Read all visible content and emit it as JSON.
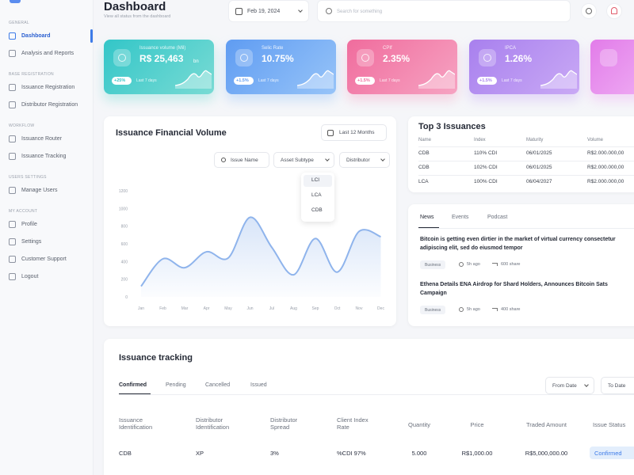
{
  "header": {
    "title": "Dashboard",
    "subtitle": "View all status from the dashboard",
    "date": "Feb 19, 2024",
    "search_placeholder": "Search for something"
  },
  "sidebar": {
    "sections": [
      {
        "label": "GENERAL",
        "items": [
          "Dashboard",
          "Analysis and Reports"
        ]
      },
      {
        "label": "BASE REGISTRATION",
        "items": [
          "Issuance Registration",
          "Distributor Registration"
        ]
      },
      {
        "label": "WORKFLOW",
        "items": [
          "Issuance Router",
          "Issuance Tracking"
        ]
      },
      {
        "label": "USERS SETTINGS",
        "items": [
          "Manage Users"
        ]
      },
      {
        "label": "MY ACCOUNT",
        "items": [
          "Profile",
          "Settings",
          "Customer Support",
          "Logout"
        ]
      }
    ]
  },
  "cards": [
    {
      "label": "Issuance volume (Mil)",
      "value": "R$ 25,463",
      "unit": "bn",
      "badge": "+25%",
      "note": "Last 7 days"
    },
    {
      "label": "Selic Rate",
      "value": "10.75%",
      "badge": "+1.5%",
      "note": "Last 7 days"
    },
    {
      "label": "CPIf",
      "value": "2.35%",
      "badge": "+1.5%",
      "note": "Last 7 days"
    },
    {
      "label": "IPCA",
      "value": "1.26%",
      "badge": "+1.5%",
      "note": "Last 7 days"
    }
  ],
  "financial_volume": {
    "title": "Issuance Financial Volume",
    "period": "Last 12 Months",
    "filters": [
      "Issue Name",
      "Asset Subtype",
      "Distributor"
    ],
    "dropdown_options": [
      "LCI",
      "LCA",
      "CDB"
    ],
    "chart": {
      "categories": [
        "Jan",
        "Feb",
        "Mar",
        "Apr",
        "May",
        "Jun",
        "Jul",
        "Aug",
        "Sep",
        "Oct",
        "Nov",
        "Dec"
      ],
      "values": [
        120,
        430,
        330,
        510,
        440,
        900,
        560,
        250,
        660,
        280,
        740,
        680
      ],
      "ylim": [
        0,
        1200
      ],
      "yticks": [
        0,
        200,
        400,
        600,
        800,
        1000,
        1200
      ],
      "color": "#8fb4ec"
    }
  },
  "top_issuances": {
    "title": "Top 3 Issuances",
    "columns": [
      "Name",
      "Index",
      "Maturity",
      "Volume"
    ],
    "rows": [
      [
        "CDB",
        "110% CDI",
        "06/01/2025",
        "R$2.000.000,00"
      ],
      [
        "CDB",
        "102% CDI",
        "06/01/2025",
        "R$2.000.000,00"
      ],
      [
        "LCA",
        "100% CDI",
        "06/04/2027",
        "R$2.000.000,00"
      ]
    ]
  },
  "news": {
    "tabs": [
      "News",
      "Events",
      "Podcast"
    ],
    "items": [
      {
        "headline": "Bitcoin is getting even dirtier in the market of virtual currency consectetur adipiscing elit, sed do eiusmod tempor",
        "tag": "Business",
        "time": "5h ago",
        "shares": "600 share"
      },
      {
        "headline": "Ethena Details ENA Airdrop for Shard Holders, Announces Bitcoin Sats Campaign",
        "tag": "Business",
        "time": "5h ago",
        "shares": "400 share"
      }
    ]
  },
  "tracking": {
    "title": "Issuance tracking",
    "tabs": [
      "Confirmed",
      "Pending",
      "Cancelled",
      "Issued"
    ],
    "buttons": [
      "From Date",
      "To Date"
    ],
    "columns": [
      "Issuance Identification",
      "Distributor Identification",
      "Distributor Spread",
      "Client Index Rate",
      "Quantity",
      "Price",
      "Traded Amount",
      "Issue Status"
    ],
    "rows": [
      [
        "CDB",
        "XP",
        "3%",
        "%CDI 97%",
        "5.000",
        "R$1,000.00",
        "R$5,000,000.00",
        "Confirmed"
      ]
    ]
  }
}
